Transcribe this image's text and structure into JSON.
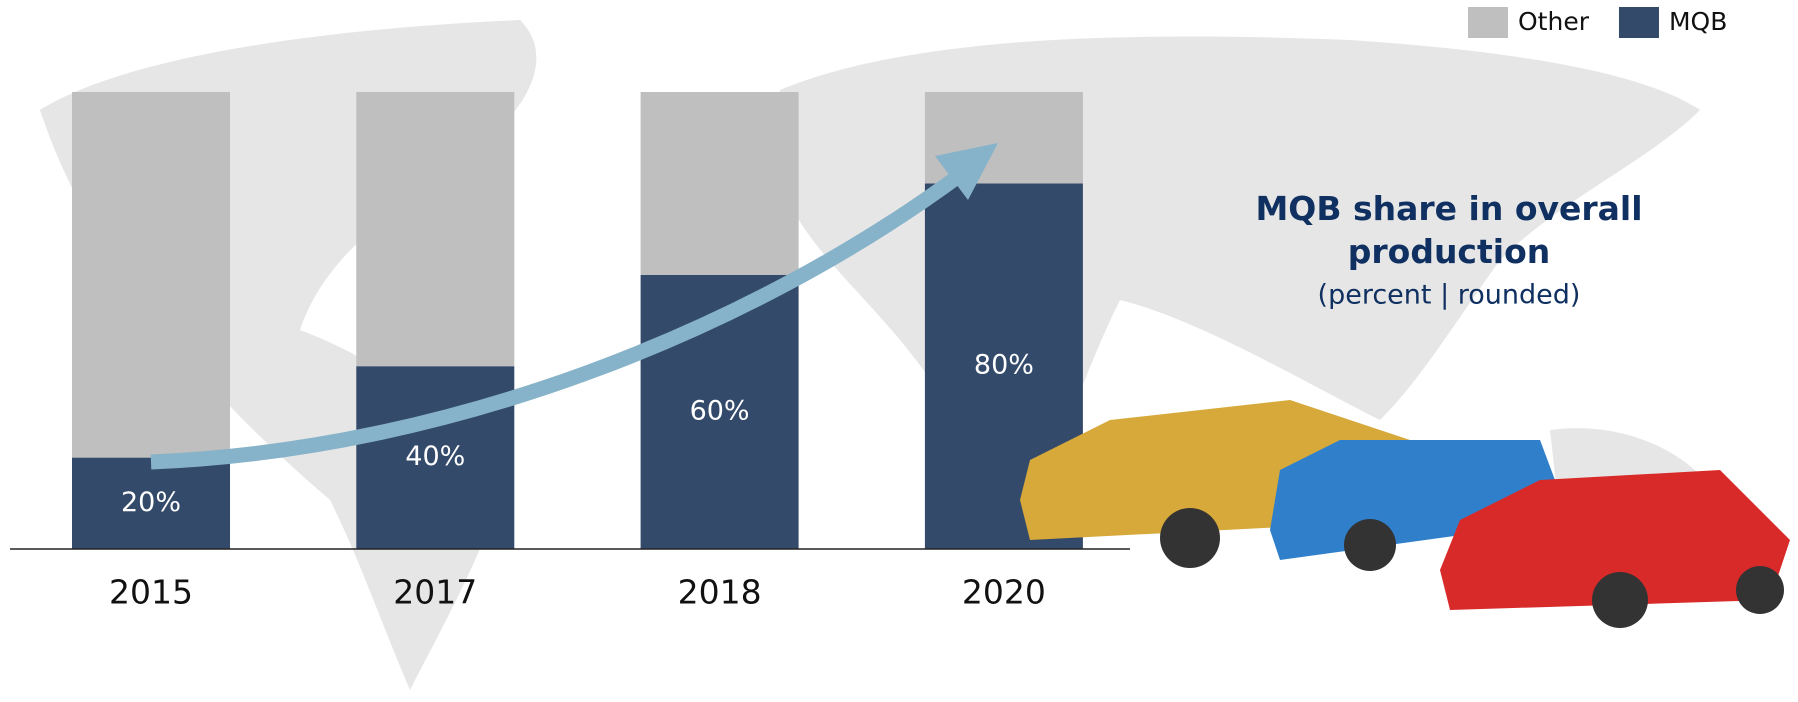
{
  "chart_data": {
    "type": "stacked_bar",
    "title": "MQB share in overall production",
    "subtitle": "(percent | rounded)",
    "categories": [
      "2015",
      "2017",
      "2018",
      "2020"
    ],
    "series": [
      {
        "name": "MQB",
        "color": "#344a6b",
        "values": [
          20,
          40,
          60,
          80
        ],
        "value_labels": [
          "20%",
          "40%",
          "60%",
          "80%"
        ]
      },
      {
        "name": "Other",
        "color": "#bfbfbf",
        "values": [
          80,
          60,
          40,
          20
        ]
      }
    ],
    "ylim": [
      0,
      100
    ]
  }
}
